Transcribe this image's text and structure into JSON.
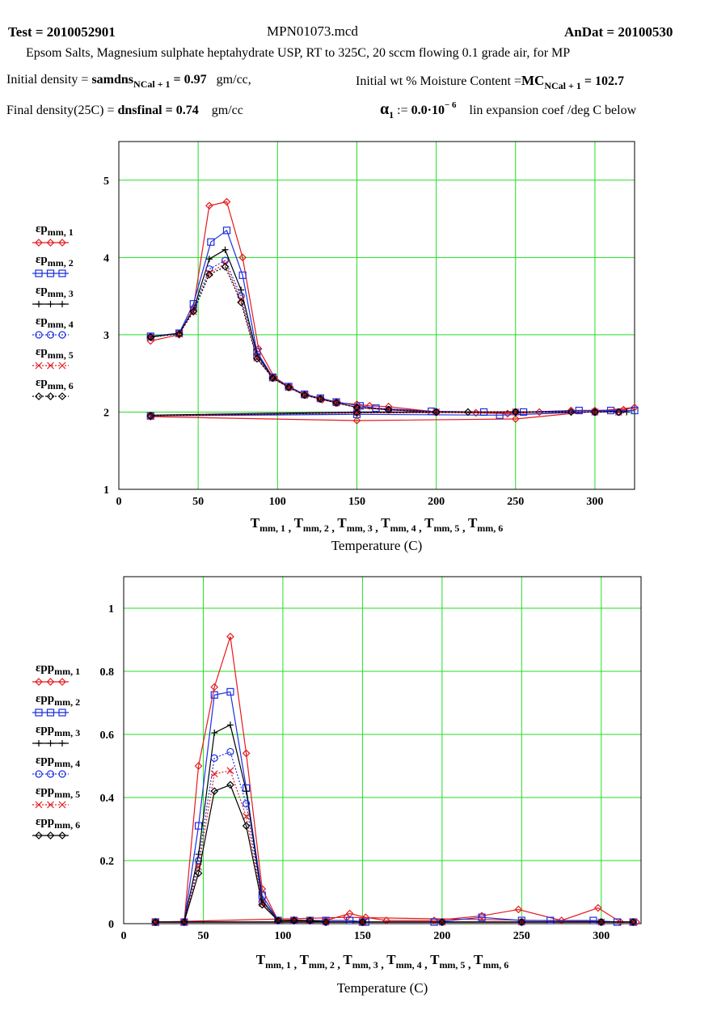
{
  "header": {
    "test_label": "Test = ",
    "test_value": "2010052901",
    "filename": "MPN01073.mcd",
    "andat_label": "AnDat = ",
    "andat_value": "20100530",
    "description": "Epsom Salts, Magnesium sulphate heptahydrate USP, RT to 325C, 20 sccm flowing 0.1 grade air, for MP",
    "initial_density_label": "Initial density = ",
    "initial_density_var": "samdns",
    "initial_density_sub": "NCal + 1",
    "initial_density_value": " = 0.97",
    "initial_density_unit": "gm/cc,",
    "moisture_label": "Initial wt % Moisture Content =",
    "moisture_var": "MC",
    "moisture_sub": "NCal + 1",
    "moisture_value": " = 102.7",
    "final_density_label": "Final density(25C) = ",
    "final_density_var": "dnsfinal",
    "final_density_value": " = 0.74",
    "final_density_unit": "gm/cc",
    "alpha_symbol": "α",
    "alpha_sub": "1",
    "alpha_assign": " := ",
    "alpha_value": "0.0·10",
    "alpha_exp": "− 6",
    "alpha_desc": "lin expansion coef /deg C below"
  },
  "chart_data": [
    {
      "type": "line",
      "xlim": [
        0,
        325
      ],
      "ylim": [
        1,
        5.5
      ],
      "xticks": [
        0,
        50,
        100,
        150,
        200,
        250,
        300
      ],
      "yticks": [
        1,
        2,
        3,
        4,
        5
      ],
      "grid": true,
      "xlabel_vars": "T_mm,1, T_mm,2, T_mm,3, T_mm,4, T_mm,5, T_mm,6",
      "xlabel": "Temperature (C)",
      "legend": "left",
      "series": [
        {
          "name": "εp mm, 1",
          "color": "#e41a1c",
          "marker": "diamond",
          "dash": "solid",
          "x": [
            20,
            38,
            47,
            57,
            68,
            78,
            88,
            98,
            108,
            118,
            128,
            138,
            150,
            158,
            170,
            200,
            225,
            245,
            265,
            285,
            300,
            318,
            325,
            250,
            150,
            20
          ],
          "y": [
            2.92,
            3.0,
            3.35,
            4.67,
            4.72,
            4.0,
            2.82,
            2.45,
            2.32,
            2.22,
            2.16,
            2.12,
            2.1,
            2.08,
            2.07,
            2.0,
            1.99,
            1.98,
            2.0,
            2.02,
            2.02,
            2.03,
            2.06,
            1.91,
            1.89,
            1.94
          ]
        },
        {
          "name": "εp mm, 2",
          "color": "#1c2fe0",
          "marker": "square",
          "dash": "solid",
          "x": [
            20,
            38,
            47,
            58,
            68,
            78,
            87,
            97,
            107,
            117,
            127,
            137,
            152,
            162,
            197,
            230,
            255,
            290,
            310,
            325,
            240,
            150,
            20
          ],
          "y": [
            2.98,
            3.02,
            3.4,
            4.2,
            4.35,
            3.77,
            2.78,
            2.45,
            2.33,
            2.23,
            2.18,
            2.13,
            2.08,
            2.05,
            2.01,
            2.0,
            2.0,
            2.02,
            2.02,
            2.02,
            1.96,
            1.97,
            1.95
          ]
        },
        {
          "name": "εp mm, 3",
          "color": "#000000",
          "marker": "plus",
          "dash": "solid",
          "x": [
            20,
            38,
            47,
            57,
            67,
            77,
            87,
            97,
            107,
            117,
            127,
            137,
            150,
            170,
            200,
            250,
            300,
            320,
            150,
            20
          ],
          "y": [
            2.97,
            3.02,
            3.32,
            3.98,
            4.1,
            3.58,
            2.75,
            2.44,
            2.32,
            2.22,
            2.17,
            2.12,
            2.06,
            2.03,
            2.0,
            2.0,
            2.0,
            2.0,
            2.0,
            1.96
          ]
        },
        {
          "name": "εp mm, 4",
          "color": "#1c2fe0",
          "marker": "circle",
          "dash": "dotted",
          "x": [
            20,
            38,
            47,
            57,
            67,
            77,
            87,
            97,
            107,
            117,
            127,
            137,
            150,
            170,
            200,
            250,
            300,
            315,
            150,
            20
          ],
          "y": [
            2.97,
            3.02,
            3.32,
            3.85,
            3.96,
            3.5,
            2.72,
            2.44,
            2.32,
            2.22,
            2.17,
            2.12,
            2.06,
            2.03,
            2.0,
            2.0,
            2.0,
            2.0,
            2.0,
            1.95
          ]
        },
        {
          "name": "εp mm, 5",
          "color": "#e41a1c",
          "marker": "x",
          "dash": "dotted",
          "x": [
            20,
            38,
            47,
            57,
            67,
            77,
            87,
            97,
            107,
            117,
            127,
            137,
            150,
            170,
            200,
            250,
            300,
            315,
            150,
            20
          ],
          "y": [
            2.97,
            3.01,
            3.3,
            3.8,
            3.92,
            3.45,
            2.7,
            2.44,
            2.32,
            2.22,
            2.17,
            2.12,
            2.06,
            2.03,
            2.0,
            2.0,
            2.0,
            2.0,
            1.99,
            1.95
          ]
        },
        {
          "name": "εp mm, 6",
          "color": "#000000",
          "marker": "diamond",
          "dash": "dotted",
          "x": [
            20,
            38,
            47,
            57,
            67,
            77,
            87,
            97,
            107,
            117,
            127,
            137,
            150,
            170,
            200,
            220,
            250,
            285,
            300,
            315,
            150,
            20
          ],
          "y": [
            2.97,
            3.01,
            3.3,
            3.78,
            3.88,
            3.42,
            2.69,
            2.44,
            2.32,
            2.22,
            2.17,
            2.12,
            2.06,
            2.03,
            2.0,
            2.0,
            2.0,
            2.0,
            2.0,
            2.0,
            1.99,
            1.95
          ]
        }
      ]
    },
    {
      "type": "line",
      "xlim": [
        0,
        325
      ],
      "ylim": [
        0,
        1.1
      ],
      "xticks": [
        0,
        50,
        100,
        150,
        200,
        250,
        300
      ],
      "yticks": [
        0,
        0.2,
        0.4,
        0.6,
        0.8,
        1
      ],
      "grid": true,
      "xlabel_vars": "T_mm,1, T_mm,2, T_mm,3, T_mm,4, T_mm,5, T_mm,6",
      "xlabel": "Temperature (C)",
      "legend": "left",
      "series": [
        {
          "name": "εpp mm, 1",
          "color": "#e41a1c",
          "marker": "diamond",
          "dash": "solid",
          "x": [
            20,
            38,
            47,
            57,
            67,
            77,
            87,
            97,
            107,
            117,
            127,
            142,
            152,
            165,
            195,
            225,
            248,
            275,
            298,
            312,
            322,
            140,
            20
          ],
          "y": [
            0.005,
            0.005,
            0.5,
            0.75,
            0.91,
            0.54,
            0.11,
            0.01,
            0.012,
            0.01,
            0.01,
            0.032,
            0.02,
            0.01,
            0.01,
            0.025,
            0.045,
            0.01,
            0.05,
            0.005,
            0.005,
            0.02,
            0.005
          ]
        },
        {
          "name": "εpp mm, 2",
          "color": "#1c2fe0",
          "marker": "square",
          "dash": "solid",
          "x": [
            20,
            38,
            47,
            57,
            67,
            77,
            87,
            97,
            107,
            117,
            127,
            142,
            152,
            195,
            225,
            250,
            268,
            295,
            310,
            320,
            150,
            20
          ],
          "y": [
            0.005,
            0.005,
            0.31,
            0.725,
            0.735,
            0.43,
            0.09,
            0.01,
            0.01,
            0.01,
            0.01,
            0.01,
            0.005,
            0.005,
            0.02,
            0.01,
            0.01,
            0.01,
            0.005,
            0.005,
            0.005,
            0.005
          ]
        },
        {
          "name": "εpp mm, 3",
          "color": "#000000",
          "marker": "plus",
          "dash": "solid",
          "x": [
            20,
            38,
            47,
            57,
            67,
            77,
            87,
            97,
            107,
            117,
            127,
            150,
            200,
            250,
            300,
            320,
            150,
            20
          ],
          "y": [
            0.005,
            0.005,
            0.22,
            0.605,
            0.63,
            0.42,
            0.075,
            0.01,
            0.01,
            0.01,
            0.005,
            0.005,
            0.005,
            0.005,
            0.005,
            0.005,
            0.005,
            0.005
          ]
        },
        {
          "name": "εpp mm, 4",
          "color": "#1c2fe0",
          "marker": "circle",
          "dash": "dotted",
          "x": [
            20,
            38,
            47,
            57,
            67,
            77,
            87,
            97,
            107,
            117,
            127,
            150,
            200,
            250,
            300,
            320,
            150,
            20
          ],
          "y": [
            0.005,
            0.005,
            0.2,
            0.525,
            0.545,
            0.38,
            0.07,
            0.01,
            0.01,
            0.01,
            0.005,
            0.005,
            0.005,
            0.005,
            0.005,
            0.005,
            0.005,
            0.005
          ]
        },
        {
          "name": "εpp mm, 5",
          "color": "#e41a1c",
          "marker": "x",
          "dash": "dotted",
          "x": [
            20,
            38,
            47,
            57,
            67,
            77,
            87,
            97,
            107,
            117,
            127,
            150,
            200,
            250,
            300,
            320,
            150,
            20
          ],
          "y": [
            0.005,
            0.005,
            0.18,
            0.475,
            0.485,
            0.34,
            0.065,
            0.01,
            0.01,
            0.01,
            0.005,
            0.005,
            0.005,
            0.005,
            0.005,
            0.005,
            0.005,
            0.005
          ]
        },
        {
          "name": "εpp mm, 6",
          "color": "#000000",
          "marker": "diamond",
          "dash": "solid",
          "x": [
            20,
            38,
            47,
            57,
            67,
            77,
            87,
            97,
            107,
            117,
            127,
            150,
            200,
            250,
            300,
            320,
            150,
            20
          ],
          "y": [
            0.005,
            0.005,
            0.16,
            0.42,
            0.44,
            0.31,
            0.06,
            0.01,
            0.01,
            0.01,
            0.005,
            0.005,
            0.005,
            0.005,
            0.005,
            0.005,
            0.005,
            0.005
          ]
        }
      ]
    }
  ]
}
